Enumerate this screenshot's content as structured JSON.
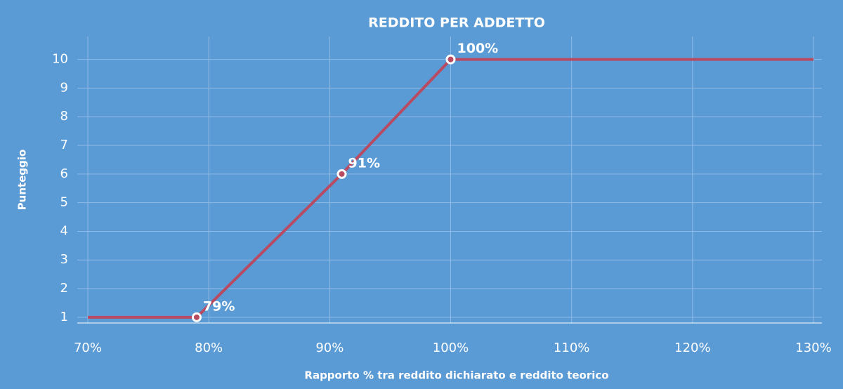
{
  "chart_data": {
    "type": "line",
    "title": "REDDITO PER ADDETTO",
    "xlabel": "Rapporto % tra reddito dichiarato e reddito teorico",
    "ylabel": "Punteggio",
    "x": [
      70,
      79,
      91,
      100,
      130
    ],
    "x_labels": [
      null,
      "79%",
      "91%",
      "100%",
      null
    ],
    "values": [
      1,
      1,
      6,
      10,
      10
    ],
    "color": "#b84a62",
    "xlim": [
      70,
      130
    ],
    "xticks": [
      {
        "value": 70,
        "label": "70%"
      },
      {
        "value": 80,
        "label": "80%"
      },
      {
        "value": 90,
        "label": "90%"
      },
      {
        "value": 100,
        "label": "100%"
      },
      {
        "value": 110,
        "label": "110%"
      },
      {
        "value": 120,
        "label": "120%"
      },
      {
        "value": 130,
        "label": "130%"
      }
    ],
    "ylim": [
      0.8,
      10.8
    ],
    "yticks": [
      1,
      2,
      3,
      4,
      5,
      6,
      7,
      8,
      9,
      10
    ],
    "grid": true
  }
}
